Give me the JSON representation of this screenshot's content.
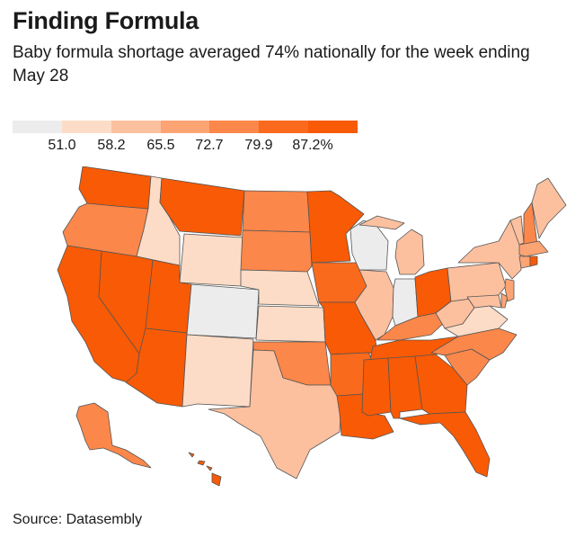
{
  "header": {
    "title": "Finding Formula",
    "subtitle": "Baby formula shortage averaged 74% nationally for the week ending May 28"
  },
  "legend": {
    "colors": [
      "#ececec",
      "#fddcc7",
      "#fcc09f",
      "#fca474",
      "#fb874a",
      "#f96a1d",
      "#f85a05"
    ],
    "ticks": [
      "51.0",
      "58.2",
      "65.5",
      "72.7",
      "79.9",
      "87.2%"
    ]
  },
  "source": "Source: Datasembly",
  "colors": {
    "bin0": "#ececec",
    "bin1": "#fddcc7",
    "bin2": "#fcc09f",
    "bin3": "#fca474",
    "bin4": "#fb874a",
    "bin5": "#f96a1d",
    "bin6": "#f85a05"
  }
}
